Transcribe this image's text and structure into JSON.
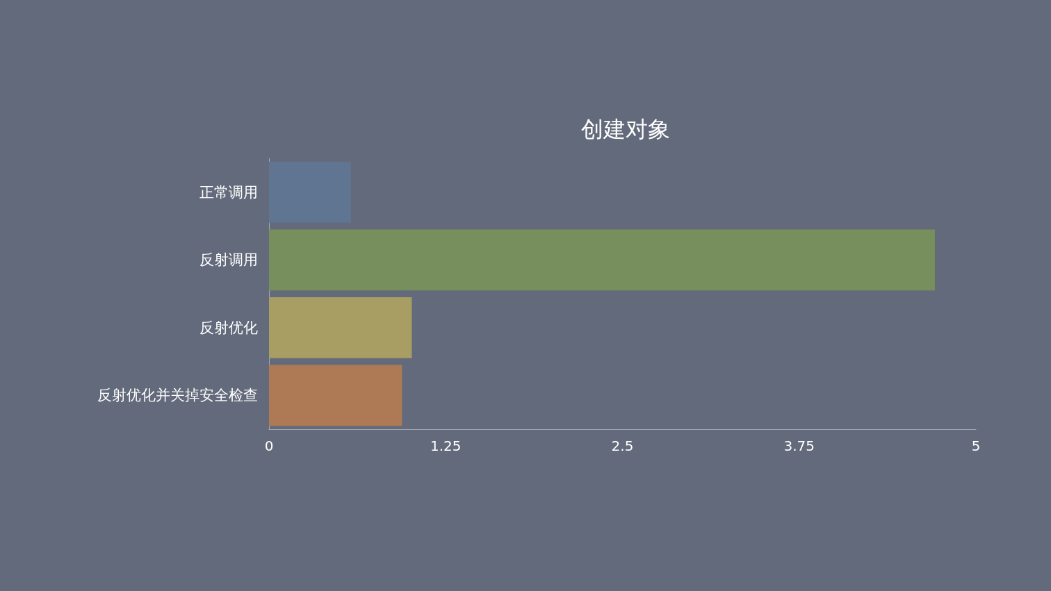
{
  "chart_data": {
    "type": "bar",
    "orientation": "horizontal",
    "title": "创建对象",
    "categories": [
      "正常调用",
      "反射调用",
      "反射优化",
      "反射优化并关掉安全检查"
    ],
    "values": [
      0.58,
      4.71,
      1.01,
      0.94
    ],
    "colors": [
      "#5f7592",
      "#778f5c",
      "#a89d62",
      "#ae7a55"
    ],
    "xlim": [
      0,
      5
    ],
    "xticks": [
      0,
      1.25,
      2.5,
      3.75,
      5
    ],
    "grid": false
  }
}
